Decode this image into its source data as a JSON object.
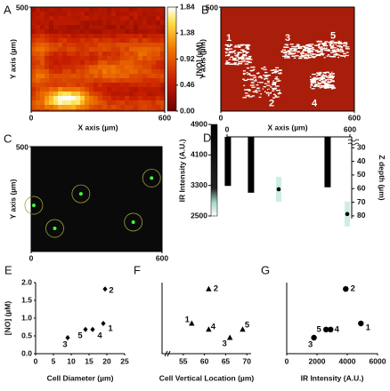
{
  "chart_data": [
    {
      "panel": "A",
      "type": "heatmap",
      "x_label": "X axis (µm)",
      "y_label": "Y axis (µm)",
      "xlim": [
        0,
        600
      ],
      "ylim": [
        0,
        500
      ],
      "xticks": [
        0,
        600
      ],
      "yticks": [
        500
      ],
      "colorbar": {
        "label": "[NO] (µM)",
        "lim": [
          0,
          1.84
        ],
        "ticks": [
          {
            "value": 0,
            "label": "0.00"
          },
          0.46,
          0.92,
          1.38,
          1.84
        ]
      }
    },
    {
      "panel": "B",
      "type": "image",
      "x_label": "X axis (µm)",
      "y_label": "Y axis (µm)",
      "xlim": [
        0,
        600
      ],
      "ylim": [
        0,
        500
      ],
      "xticks": [
        0,
        600
      ],
      "yticks": [
        500
      ],
      "cell_labels": [
        "1",
        "2",
        "3",
        "4",
        "5"
      ]
    },
    {
      "panel": "C",
      "type": "image",
      "y_label": "Y axis (µm)",
      "xlim": [
        0,
        600
      ],
      "ylim": [
        0,
        500
      ],
      "xticks": [
        0,
        600
      ],
      "yticks": [
        500
      ]
    },
    {
      "panel": "D",
      "type": "range",
      "y_label": "IR Intensity (A.U.)",
      "y2_label": "Z depth (µm)",
      "xlim": [
        0,
        600
      ],
      "xticks": [
        0,
        600
      ],
      "ylim": [
        2500,
        4900
      ],
      "yticks": [
        2500,
        3300,
        4100,
        4900
      ],
      "y2lim": [
        22,
        82
      ],
      "y2ticks": [
        30,
        40,
        50,
        60,
        70,
        80
      ],
      "y2_inverted": true,
      "depth_ranges": {
        "x": [
          4,
          117,
          491
        ],
        "low": [
          22,
          22,
          22
        ],
        "high": [
          58,
          63,
          59
        ]
      },
      "ir_points": {
        "x": [
          252,
          587
        ],
        "values": [
          3200,
          2550
        ]
      }
    },
    {
      "panel": "E",
      "type": "scatter",
      "marker": "diamond",
      "x_label": "Cell Diameter (µm)",
      "y_label": "[NO] (µM)",
      "xlim": [
        0,
        25
      ],
      "xticks": [
        0,
        5,
        10,
        15,
        20,
        25
      ],
      "ylim": [
        0,
        2
      ],
      "yticks": [
        {
          "value": 0,
          "label": "0.0"
        },
        {
          "value": 0.5,
          "label": "0.5"
        },
        {
          "value": 1,
          "label": "1.0"
        },
        {
          "value": 1.5,
          "label": "1.5"
        },
        {
          "value": 2,
          "label": "2.0"
        }
      ],
      "x": [
        19,
        19.5,
        9,
        16,
        14
      ],
      "values": [
        0.85,
        1.82,
        0.45,
        0.68,
        0.68
      ],
      "point_labels": [
        "1",
        "2",
        "3",
        "4",
        "5"
      ]
    },
    {
      "panel": "F",
      "type": "scatter",
      "marker": "triangle",
      "x_label": "Cell Vertical Location (µm)",
      "xlim": [
        50,
        71
      ],
      "xticks": [
        55,
        60,
        65,
        70
      ],
      "ylim": [
        0,
        2
      ],
      "x": [
        57,
        61,
        66,
        61,
        69
      ],
      "values": [
        0.85,
        1.82,
        0.45,
        0.68,
        0.68
      ],
      "point_labels": [
        "1",
        "2",
        "3",
        "4",
        "5"
      ]
    },
    {
      "panel": "G",
      "type": "scatter",
      "marker": "circle",
      "x_label": "IR Intensity (A.U.)",
      "xlim": [
        0,
        6000
      ],
      "xticks": [
        0,
        2000,
        4000,
        6000
      ],
      "ylim": [
        0,
        2
      ],
      "x": [
        4900,
        3900,
        1800,
        2900,
        2600
      ],
      "values": [
        0.85,
        1.82,
        0.45,
        0.68,
        0.68
      ],
      "point_labels": [
        "1",
        "2",
        "3",
        "4",
        "5"
      ]
    }
  ]
}
